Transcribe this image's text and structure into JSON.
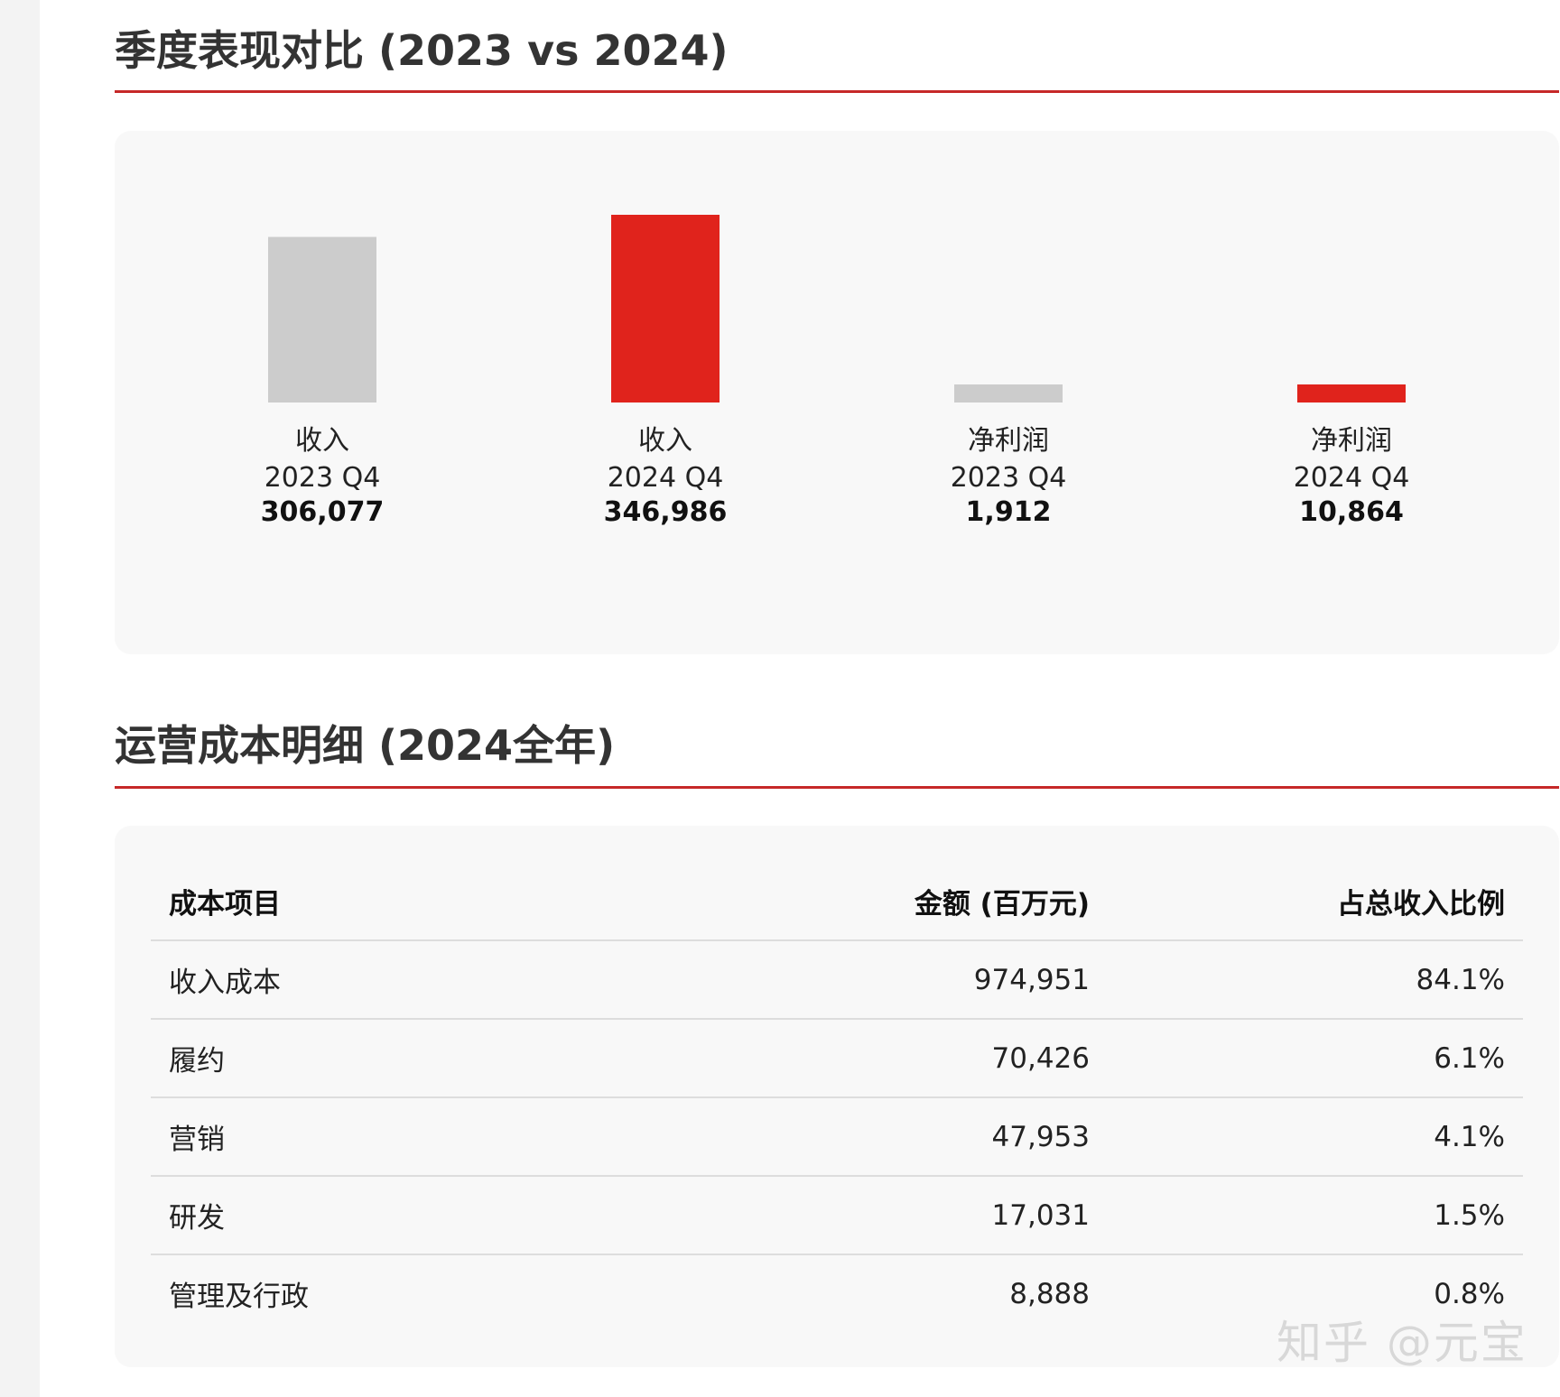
{
  "colors": {
    "accent": "#c62828",
    "bar_2023": "#cccccc",
    "bar_2024": "#e0231c"
  },
  "quarterly": {
    "title": "季度表现对比 (2023 vs 2024)"
  },
  "chart_data": {
    "type": "bar",
    "title": "季度表现对比 (2023 vs 2024)",
    "grid": false,
    "bars": [
      {
        "metric": "收入",
        "period": "2023 Q4",
        "value": 306077,
        "value_label": "306,077",
        "year": "2023"
      },
      {
        "metric": "收入",
        "period": "2024 Q4",
        "value": 346986,
        "value_label": "346,986",
        "year": "2024"
      },
      {
        "metric": "净利润",
        "period": "2023 Q4",
        "value": 1912,
        "value_label": "1,912",
        "year": "2023"
      },
      {
        "metric": "净利润",
        "period": "2024 Q4",
        "value": 10864,
        "value_label": "10,864",
        "year": "2024"
      }
    ]
  },
  "costs": {
    "title": "运营成本明细 (2024全年)",
    "headers": {
      "item": "成本项目",
      "amount": "金额 (百万元)",
      "ratio": "占总收入比例"
    },
    "rows": [
      {
        "item": "收入成本",
        "amount": "974,951",
        "ratio": "84.1%"
      },
      {
        "item": "履约",
        "amount": "70,426",
        "ratio": "6.1%"
      },
      {
        "item": "营销",
        "amount": "47,953",
        "ratio": "4.1%"
      },
      {
        "item": "研发",
        "amount": "17,031",
        "ratio": "1.5%"
      },
      {
        "item": "管理及行政",
        "amount": "8,888",
        "ratio": "0.8%"
      }
    ]
  },
  "watermark": "知乎 @元宝"
}
